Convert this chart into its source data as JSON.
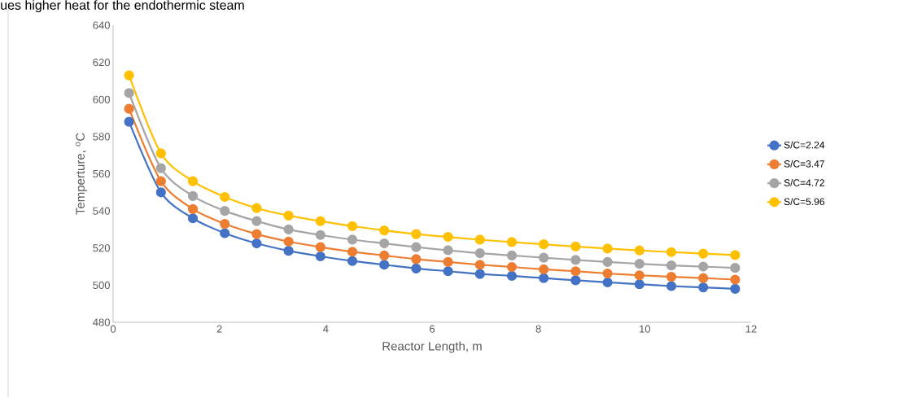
{
  "chart_data": {
    "type": "line",
    "annotations": [
      "ues higher heat for the endothermic steam"
    ],
    "xlabel": "Reactor Length, m",
    "ylabel": "Temperture, $^{o}$C",
    "x": [
      0.3,
      0.9,
      1.5,
      2.1,
      2.7,
      3.3,
      3.9,
      4.5,
      5.1,
      5.7,
      6.3,
      6.9,
      7.5,
      8.1,
      8.7,
      9.3,
      9.9,
      10.5,
      11.1,
      11.7
    ],
    "series": [
      {
        "name": "S/C=2.24",
        "color": "#4472c4",
        "values": [
          588,
          550,
          536,
          528,
          522.5,
          518.5,
          515.5,
          513,
          511,
          509,
          507.5,
          506,
          505,
          503.8,
          502.6,
          501.5,
          500.5,
          499.5,
          498.8,
          498
        ]
      },
      {
        "name": "S/C=3.47",
        "color": "#ed7d31",
        "values": [
          595,
          556,
          541,
          533,
          527.5,
          523.5,
          520.5,
          518,
          516,
          514,
          512.5,
          511,
          509.8,
          508.5,
          507.5,
          506.3,
          505.3,
          504.5,
          503.8,
          503
        ]
      },
      {
        "name": "S/C=4.72",
        "color": "#a5a5a5",
        "values": [
          603.5,
          563,
          548,
          540,
          534.5,
          530,
          527,
          524.5,
          522.5,
          520.5,
          518.8,
          517.2,
          516,
          514.8,
          513.6,
          512.5,
          511.5,
          510.6,
          510,
          509.3
        ]
      },
      {
        "name": "S/C=5.96",
        "color": "#ffc000",
        "values": [
          613,
          571,
          556,
          547.5,
          541.5,
          537.5,
          534.5,
          531.8,
          529.5,
          527.5,
          526,
          524.5,
          523.2,
          522,
          520.8,
          519.7,
          518.7,
          517.8,
          517,
          516.2
        ]
      }
    ],
    "xlim": [
      0,
      12
    ],
    "xticks": [
      0,
      2,
      4,
      6,
      8,
      10,
      12
    ],
    "ylim": [
      480,
      640
    ],
    "yticks": [
      480,
      500,
      520,
      540,
      560,
      580,
      600,
      620,
      640
    ],
    "grid": false,
    "legend": "right",
    "marker": "circle",
    "line_style": "solid"
  }
}
